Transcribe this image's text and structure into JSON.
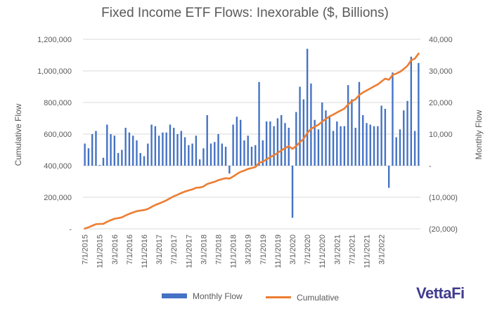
{
  "chart_data": {
    "type": "bar+line",
    "title": "Fixed Income ETF Flows: Inexorable ($, Billions)",
    "ylabel_left": "Cumulative Flow",
    "ylabel_right": "Monthly Flow",
    "ylim_left": [
      0,
      1200000
    ],
    "ylim_right": [
      -20000,
      40000
    ],
    "yticks_left": [
      "-",
      "200,000",
      "400,000",
      "600,000",
      "800,000",
      "1,000,000",
      "1,200,000"
    ],
    "yticks_right": [
      "(20,000)",
      "(10,000)",
      "-",
      "10,000",
      "20,000",
      "30,000",
      "40,000"
    ],
    "x_start": "7/1/2015",
    "x_tick_labels": [
      "7/1/2015",
      "11/1/2015",
      "3/1/2016",
      "7/1/2016",
      "11/1/2016",
      "3/1/2017",
      "7/1/2017",
      "11/1/2017",
      "3/1/2018",
      "7/1/2018",
      "11/1/2018",
      "3/1/2019",
      "7/1/2019",
      "11/1/2019",
      "3/1/2020",
      "7/1/2020",
      "11/1/2020",
      "3/1/2021",
      "7/1/2021",
      "11/1/2021",
      "3/1/2022"
    ],
    "legend_position": "bottom",
    "grid": true,
    "series": [
      {
        "name": "Monthly Flow",
        "type": "bar",
        "color": "#4472c4",
        "values": [
          7000,
          5500,
          10000,
          11000,
          200,
          2500,
          13000,
          10000,
          9500,
          4000,
          5000,
          12000,
          10500,
          9500,
          8000,
          4000,
          3000,
          7000,
          13000,
          12500,
          9500,
          10500,
          10500,
          13000,
          12000,
          10000,
          11000,
          9000,
          6500,
          7000,
          9500,
          2000,
          5500,
          16000,
          7000,
          7500,
          10000,
          7000,
          6000,
          -2500,
          13000,
          15500,
          14500,
          8000,
          9500,
          6000,
          6500,
          26500,
          8000,
          14000,
          14000,
          12500,
          15000,
          16000,
          13500,
          12000,
          -16500,
          17000,
          25000,
          21000,
          37000,
          26000,
          14500,
          11500,
          20000,
          17500,
          15500,
          11000,
          14000,
          12500,
          12500,
          25500,
          21000,
          12000,
          26500,
          16000,
          13500,
          13000,
          12500,
          12500,
          19000,
          18000,
          -7000,
          29500,
          9000,
          11500,
          17500,
          20500,
          34500,
          11000,
          32500
        ]
      },
      {
        "name": "Cumulative",
        "type": "line",
        "color": "#ed7d31",
        "values": [
          2000,
          10000,
          20000,
          30000,
          31000,
          32000,
          45000,
          55000,
          64000,
          68000,
          73000,
          85000,
          95000,
          104000,
          112000,
          116000,
          119000,
          126000,
          139000,
          151000,
          160000,
          170000,
          181000,
          194000,
          206000,
          216000,
          227000,
          236000,
          243000,
          250000,
          260000,
          262000,
          268000,
          284000,
          291000,
          298000,
          308000,
          315000,
          321000,
          318000,
          331000,
          347000,
          361000,
          369000,
          379000,
          385000,
          391000,
          418000,
          426000,
          440000,
          454000,
          466000,
          481000,
          497000,
          511000,
          523000,
          507000,
          524000,
          549000,
          570000,
          607000,
          633000,
          647000,
          659000,
          679000,
          696000,
          712000,
          723000,
          737000,
          749000,
          762000,
          787000,
          808000,
          820000,
          847000,
          863000,
          876000,
          889000,
          902000,
          914000,
          933000,
          951000,
          944000,
          974000,
          983000,
          994000,
          1012000,
          1032000,
          1067000,
          1078000,
          1110000
        ]
      }
    ]
  },
  "legend": {
    "bar_label": "Monthly Flow",
    "line_label": "Cumulative"
  },
  "logo_text": "VettaFi"
}
